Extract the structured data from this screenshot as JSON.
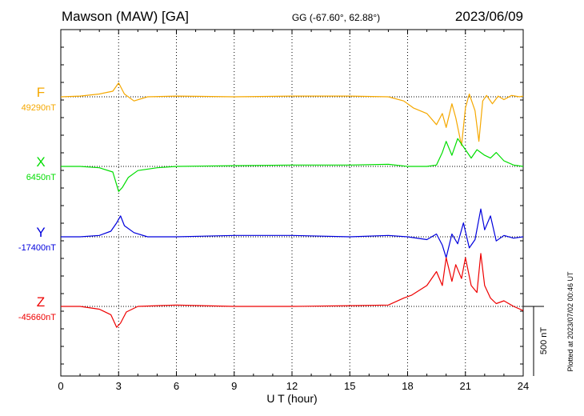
{
  "header": {
    "station": "Mawson (MAW)  [GA]",
    "coords": "GG (-67.60°,  62.88°)",
    "date": "2023/06/09"
  },
  "footer": {
    "plotted": "Plotted at 2023/07/02 00:46 UT"
  },
  "colors": {
    "F": "#f5a800",
    "X": "#00dd00",
    "Y": "#0000dd",
    "Z": "#ee0000",
    "axis": "#000000"
  },
  "chart_data": {
    "type": "line",
    "xlabel": "U T (hour)",
    "xlim": [
      0,
      24
    ],
    "xticks": [
      "0",
      "3",
      "6",
      "9",
      "12",
      "15",
      "18",
      "21",
      "24"
    ],
    "grid": true,
    "grid_style": "dotted",
    "scale_bar": {
      "value": 500,
      "label": "500 nT"
    },
    "series": [
      {
        "name": "F",
        "baseline_label": "49290nT",
        "baseline": 49290,
        "x": [
          0,
          1,
          2,
          2.7,
          3.0,
          3.3,
          3.8,
          4.5,
          6,
          9,
          12,
          15,
          17,
          17.8,
          18.3,
          19,
          19.5,
          19.8,
          20.0,
          20.3,
          20.5,
          20.8,
          21.0,
          21.2,
          21.5,
          21.7,
          21.9,
          22.1,
          22.4,
          22.7,
          23.0,
          23.4,
          23.8,
          24
        ],
        "values": [
          0,
          5,
          20,
          40,
          100,
          20,
          -30,
          0,
          5,
          0,
          5,
          5,
          0,
          -30,
          -80,
          -120,
          -200,
          -120,
          -220,
          -50,
          -150,
          -350,
          -80,
          20,
          -100,
          -320,
          -30,
          10,
          -50,
          5,
          -20,
          10,
          0,
          5
        ]
      },
      {
        "name": "X",
        "baseline_label": "6450nT",
        "baseline": 6450,
        "x": [
          0,
          1,
          2,
          2.7,
          3.0,
          3.2,
          3.5,
          4,
          5,
          6,
          9,
          12,
          15,
          17,
          18,
          19,
          19.5,
          19.8,
          20.0,
          20.3,
          20.6,
          21.0,
          21.3,
          21.6,
          22.0,
          22.3,
          22.6,
          23.0,
          23.5,
          24
        ],
        "values": [
          0,
          0,
          -10,
          -40,
          -180,
          -150,
          -80,
          -30,
          -10,
          0,
          5,
          10,
          10,
          15,
          0,
          0,
          10,
          100,
          180,
          80,
          200,
          120,
          60,
          120,
          80,
          60,
          100,
          40,
          10,
          0
        ]
      },
      {
        "name": "Y",
        "baseline_label": "-17400nT",
        "baseline": -17400,
        "x": [
          0,
          1,
          2,
          2.6,
          2.9,
          3.1,
          3.3,
          3.8,
          4.5,
          6,
          9,
          12,
          15,
          17,
          18,
          19,
          19.5,
          19.8,
          20.0,
          20.3,
          20.6,
          20.9,
          21.2,
          21.5,
          21.8,
          22.0,
          22.3,
          22.6,
          23,
          23.5,
          24
        ],
        "values": [
          0,
          0,
          10,
          40,
          100,
          150,
          80,
          30,
          0,
          0,
          10,
          10,
          0,
          10,
          0,
          -20,
          20,
          -60,
          -150,
          20,
          -50,
          100,
          -80,
          -20,
          200,
          50,
          150,
          -30,
          10,
          -10,
          0
        ]
      },
      {
        "name": "Z",
        "baseline_label": "-45660nT",
        "baseline": -45660,
        "x": [
          0,
          1,
          2,
          2.6,
          2.9,
          3.1,
          3.4,
          4,
          5,
          6,
          9,
          12,
          15,
          17,
          17.8,
          18.2,
          19,
          19.5,
          19.8,
          20.0,
          20.3,
          20.5,
          20.8,
          21.0,
          21.3,
          21.6,
          21.8,
          22.0,
          22.3,
          22.6,
          23,
          23.5,
          24
        ],
        "values": [
          0,
          0,
          -20,
          -60,
          -150,
          -120,
          -40,
          0,
          5,
          10,
          0,
          0,
          5,
          10,
          60,
          80,
          150,
          250,
          150,
          350,
          180,
          300,
          200,
          350,
          150,
          100,
          380,
          150,
          60,
          20,
          40,
          0,
          -30
        ]
      }
    ]
  }
}
